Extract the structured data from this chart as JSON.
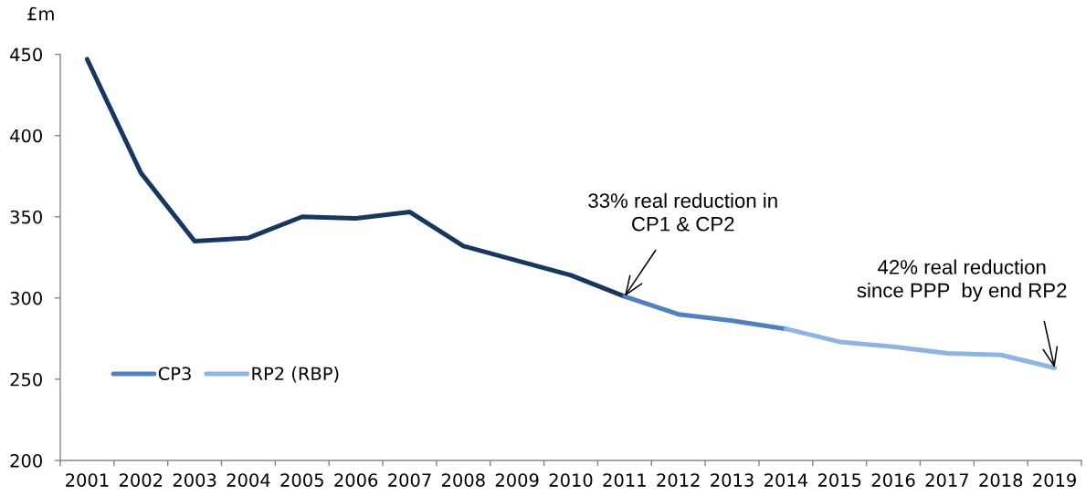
{
  "chart_data": {
    "type": "line",
    "ylabel": "£m",
    "categories": [
      "2001",
      "2002",
      "2003",
      "2004",
      "2005",
      "2006",
      "2007",
      "2008",
      "2009",
      "2010",
      "2011",
      "2012",
      "2013",
      "2014",
      "2015",
      "2016",
      "2017",
      "2018",
      "2019"
    ],
    "series": [
      {
        "color": "#17375e",
        "values": [
          447,
          377,
          335,
          337,
          350,
          349,
          353,
          332,
          323,
          314,
          301,
          null,
          null,
          null,
          null,
          null,
          null,
          null,
          null
        ]
      },
      {
        "name": "CP3",
        "color": "#4f81bd",
        "values": [
          null,
          null,
          null,
          null,
          null,
          null,
          null,
          null,
          null,
          null,
          301,
          290,
          286,
          281,
          null,
          null,
          null,
          null,
          null
        ]
      },
      {
        "name": "RP2 (RBP)",
        "color": "#8eb4e3",
        "values": [
          null,
          null,
          null,
          null,
          null,
          null,
          null,
          null,
          null,
          null,
          null,
          null,
          null,
          281,
          273,
          270,
          266,
          265,
          257
        ]
      }
    ],
    "ylim": [
      200,
      450
    ],
    "yticks": [
      200,
      250,
      300,
      350,
      400,
      450
    ],
    "grid": false,
    "legend": "bottom left",
    "line_style": "solid",
    "annotations": [
      {
        "text": "33% real reduction in\nCP1 & CP2",
        "x": "2011",
        "y": 301
      },
      {
        "text": "42% real reduction\nsince PPP  by end RP2",
        "x": "2019",
        "y": 257
      }
    ]
  }
}
